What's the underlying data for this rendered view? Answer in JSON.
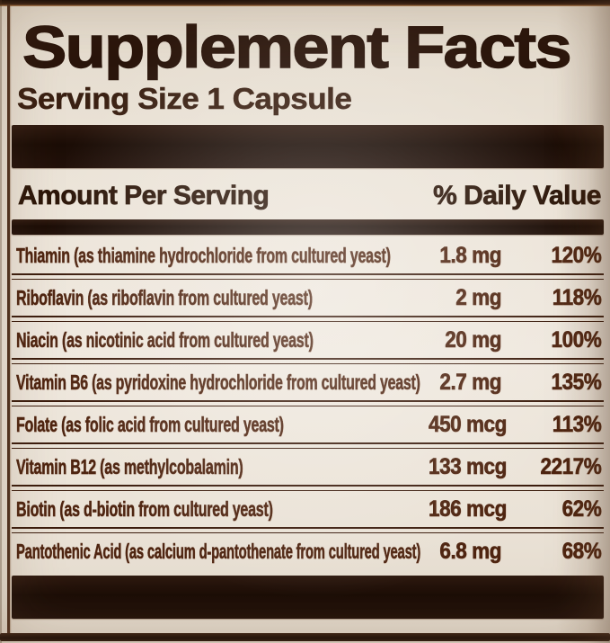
{
  "panel": {
    "title": "Supplement Facts",
    "serving_size": "Serving Size 1 Capsule",
    "header": {
      "amount_label": "Amount Per Serving",
      "daily_value_label": "% Daily Value"
    },
    "rows": [
      {
        "name": "Thiamin (as thiamine hydrochloride from cultured yeast)",
        "amount": "1.8 mg",
        "dv": "120%"
      },
      {
        "name": "Riboflavin (as riboflavin from cultured yeast)",
        "amount": "2 mg",
        "dv": "118%"
      },
      {
        "name": "Niacin (as nicotinic acid from cultured yeast)",
        "amount": "20 mg",
        "dv": "100%"
      },
      {
        "name": "Vitamin B6 (as pyridoxine hydrochloride from cultured yeast)",
        "amount": "2.7 mg",
        "dv": "135%"
      },
      {
        "name": "Folate (as folic acid from cultured yeast)",
        "amount": "450 mcg",
        "dv": "113%"
      },
      {
        "name": "Vitamin B12 (as methylcobalamin)",
        "amount": "133 mcg",
        "dv": "2217%"
      },
      {
        "name": "Biotin (as d-biotin from cultured yeast)",
        "amount": "186 mcg",
        "dv": "62%"
      },
      {
        "name": "Pantothenic Acid (as calcium d-pantothenate from cultured yeast)",
        "amount": "6.8 mg",
        "dv": "68%"
      }
    ],
    "colors": {
      "label-background": "#ece4d9",
      "ink": "#2a150b",
      "row-text": "#4e2410",
      "bar": "#22110a",
      "rule": "#3b1c0d"
    }
  }
}
